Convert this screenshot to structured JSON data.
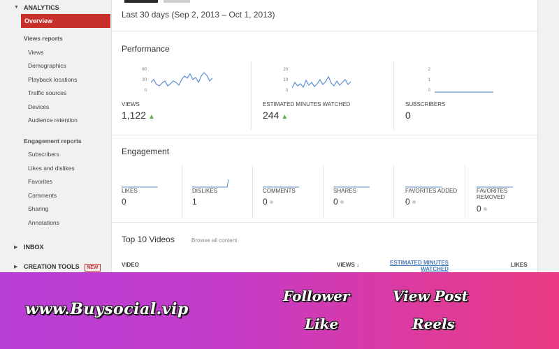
{
  "sidebar": {
    "analytics_label": "ANALYTICS",
    "overview_label": "Overview",
    "views_reports": {
      "heading": "Views reports",
      "items": [
        "Views",
        "Demographics",
        "Playback locations",
        "Traffic sources",
        "Devices",
        "Audience retention"
      ]
    },
    "engagement_reports": {
      "heading": "Engagement reports",
      "items": [
        "Subscribers",
        "Likes and dislikes",
        "Favorites",
        "Comments",
        "Sharing",
        "Annotations"
      ]
    },
    "inbox_label": "INBOX",
    "creation_tools_label": "CREATION TOOLS",
    "new_badge": "NEW"
  },
  "main": {
    "date_range": "Last 30 days (Sep 2, 2013 – Oct 1, 2013)",
    "performance": {
      "title": "Performance",
      "metrics": [
        {
          "label": "VIEWS",
          "value": "1,122",
          "trend": "up",
          "ticks": [
            "60",
            "30",
            "0"
          ]
        },
        {
          "label": "ESTIMATED MINUTES WATCHED",
          "value": "244",
          "trend": "up",
          "ticks": [
            "20",
            "10",
            "0"
          ]
        },
        {
          "label": "SUBSCRIBERS",
          "value": "0",
          "trend": "none",
          "ticks": [
            "2",
            "1",
            "0"
          ]
        }
      ]
    },
    "engagement": {
      "title": "Engagement",
      "metrics": [
        {
          "label": "LIKES",
          "value": "0"
        },
        {
          "label": "DISLIKES",
          "value": "1"
        },
        {
          "label": "COMMENTS",
          "value": "0"
        },
        {
          "label": "SHARES",
          "value": "0"
        },
        {
          "label": "FAVORITES ADDED",
          "value": "0"
        },
        {
          "label": "FAVORITES REMOVED",
          "value": "0"
        }
      ]
    },
    "top_videos": {
      "title": "Top 10 Videos",
      "browse_label": "Browse all content",
      "columns": {
        "video": "VIDEO",
        "views": "VIEWS",
        "minutes": "ESTIMATED MINUTES WATCHED",
        "likes": "LIKES"
      }
    }
  },
  "banner": {
    "site": "www.Buysocial.vip",
    "tags": [
      "Follower",
      "View Post",
      "Like",
      "Reels"
    ]
  },
  "colors": {
    "accent_red": "#c8302c",
    "spark_blue": "#5b8fd1",
    "up_green": "#6aa84f",
    "banner_start": "#b83fd6",
    "banner_end": "#e93a82"
  }
}
